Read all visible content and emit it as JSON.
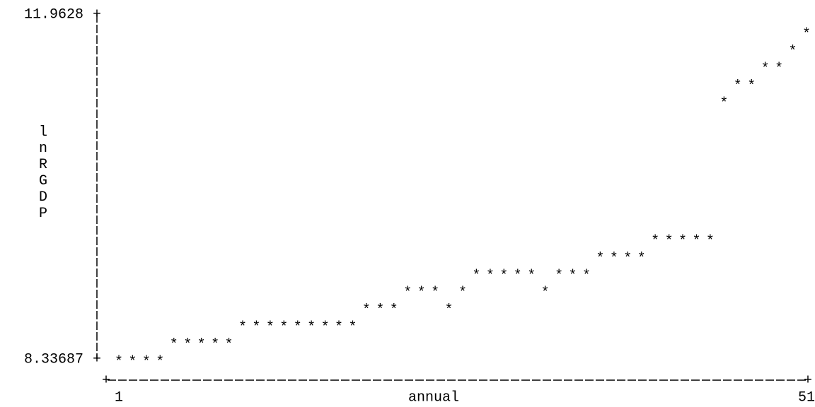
{
  "chart_data": {
    "type": "scatter",
    "x_label": "annual",
    "y_label": "lnRGDP",
    "marker": "*",
    "color": "#000000",
    "x": [
      1,
      2,
      3,
      4,
      5,
      6,
      7,
      8,
      9,
      10,
      11,
      12,
      13,
      14,
      15,
      16,
      17,
      18,
      19,
      20,
      21,
      22,
      23,
      24,
      25,
      26,
      27,
      28,
      29,
      30,
      31,
      32,
      33,
      34,
      35,
      36,
      37,
      38,
      39,
      40,
      41,
      42,
      43,
      44,
      45,
      46,
      47,
      48,
      49,
      50,
      51
    ],
    "y": [
      8.337,
      8.337,
      8.337,
      8.337,
      8.518,
      8.518,
      8.518,
      8.518,
      8.518,
      8.7,
      8.7,
      8.7,
      8.7,
      8.7,
      8.7,
      8.7,
      8.7,
      8.7,
      8.881,
      8.881,
      8.881,
      9.062,
      9.062,
      9.062,
      8.881,
      9.062,
      9.243,
      9.243,
      9.243,
      9.243,
      9.243,
      9.062,
      9.243,
      9.243,
      9.243,
      9.425,
      9.425,
      9.425,
      9.425,
      9.606,
      9.606,
      9.606,
      9.606,
      9.606,
      11.056,
      11.238,
      11.238,
      11.419,
      11.419,
      11.6,
      11.781
    ],
    "xlim": [
      1,
      51
    ],
    "xticks": [
      1,
      51
    ],
    "ylim": [
      8.33687,
      11.9628
    ],
    "yticks": [
      8.33687,
      11.9628
    ]
  }
}
